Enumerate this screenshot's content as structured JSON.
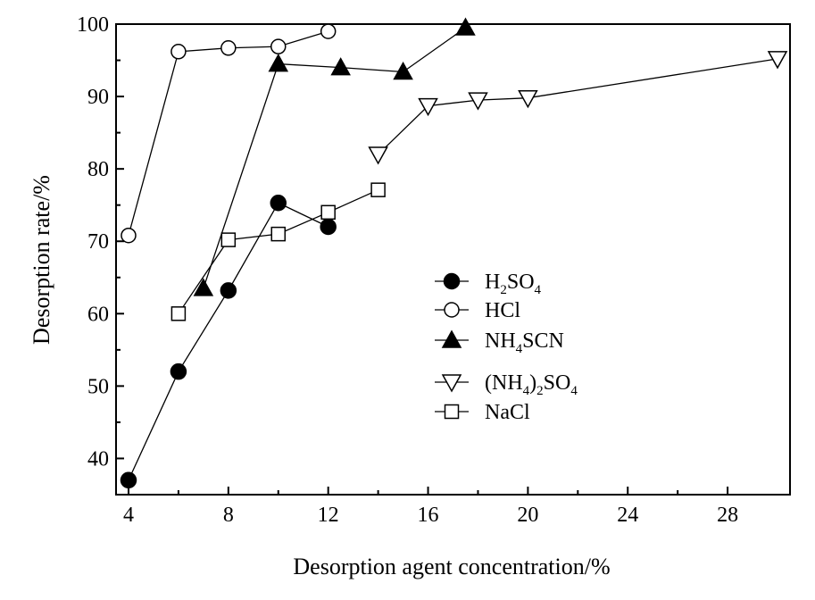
{
  "chart_data": {
    "type": "line",
    "title": "",
    "xlabel": "Desorption agent concentration/%",
    "ylabel": "Desorption rate/%",
    "xlim": [
      3.5,
      30.5
    ],
    "ylim": [
      35,
      100
    ],
    "x_ticks": [
      4,
      8,
      12,
      16,
      20,
      24,
      28
    ],
    "x_tick_labels": [
      "4",
      "8",
      "12",
      "16",
      "20",
      "24",
      "28"
    ],
    "y_ticks": [
      40,
      50,
      60,
      70,
      80,
      90,
      100
    ],
    "y_tick_labels": [
      "40",
      "50",
      "60",
      "70",
      "80",
      "90",
      "100"
    ],
    "grid": false,
    "legend_position": "center-right",
    "series": [
      {
        "key": "h2so4",
        "legend": {
          "main": "H",
          "sub1": "2",
          "mid": "SO",
          "sub2": "4"
        },
        "marker": "circle-filled",
        "x": [
          4,
          6,
          8,
          10,
          12
        ],
        "y": [
          37,
          52,
          63.2,
          75.3,
          72
        ]
      },
      {
        "key": "hcl",
        "legend": {
          "main": "HCl"
        },
        "marker": "circle-open",
        "x": [
          4,
          6,
          8,
          10,
          12
        ],
        "y": [
          70.8,
          96.2,
          96.7,
          96.9,
          99
        ]
      },
      {
        "key": "nh4scn",
        "legend": {
          "main": "NH",
          "sub1": "4",
          "mid": "SCN"
        },
        "marker": "triangle-up-filled",
        "x": [
          7,
          10,
          12.5,
          15,
          17.5
        ],
        "y": [
          63.5,
          94.5,
          94,
          93.4,
          99.5
        ]
      },
      {
        "key": "nh42so4",
        "legend": {
          "main": "(NH",
          "sub1": "4",
          "mid": ")",
          "sub2": "2",
          "tail": "SO",
          "sub3": "4"
        },
        "marker": "triangle-down-open",
        "x": [
          14,
          16,
          18,
          20,
          30
        ],
        "y": [
          82,
          88.7,
          89.5,
          89.8,
          95.2
        ]
      },
      {
        "key": "nacl",
        "legend": {
          "main": "NaCl"
        },
        "marker": "square-open",
        "x": [
          6,
          8,
          10,
          12,
          14
        ],
        "y": [
          60,
          70.2,
          71,
          74,
          77.1
        ]
      }
    ]
  }
}
